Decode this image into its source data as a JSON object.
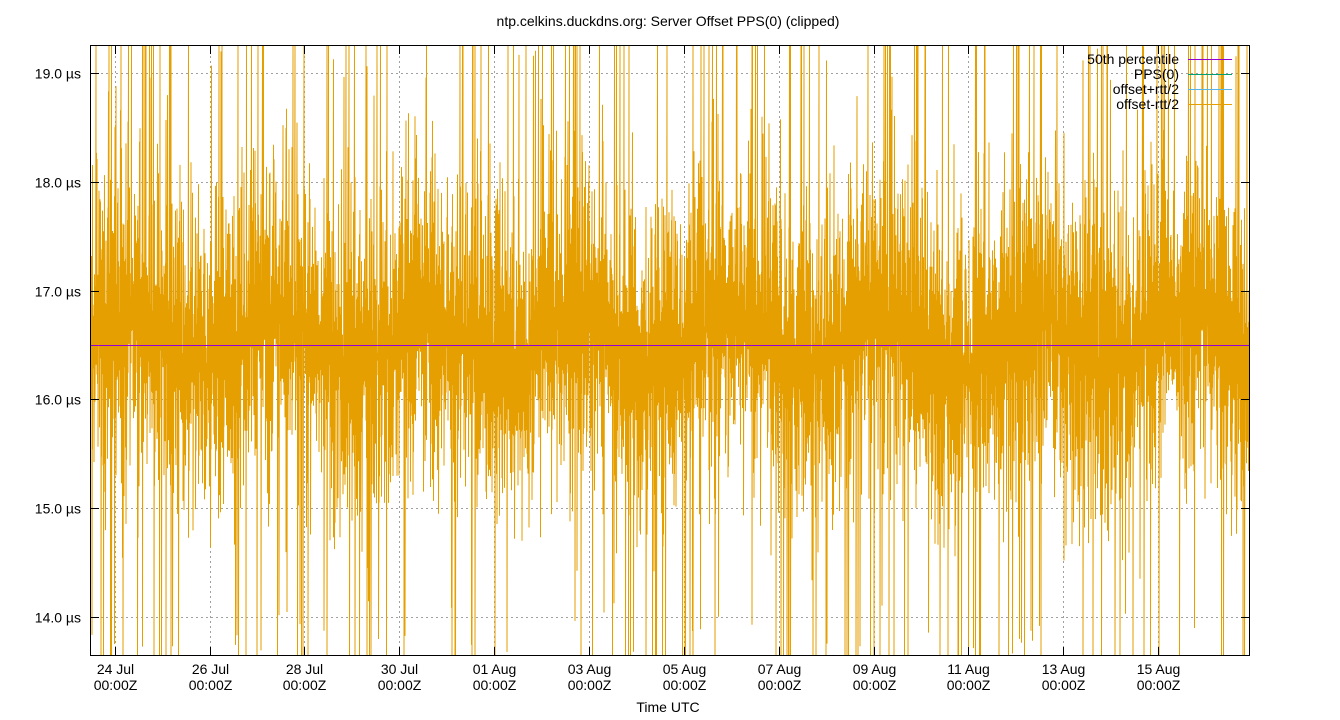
{
  "chart_data": {
    "type": "line",
    "title": "ntp.celkins.duckdns.org: Server Offset PPS(0) (clipped)",
    "xlabel": "Time UTC",
    "ylabel": "",
    "x_range": [
      "2025-07-23T12:00Z",
      "2025-08-16T22:00Z"
    ],
    "y_range_us": [
      13.65,
      19.25
    ],
    "grid": true,
    "legend_placement": "top-right",
    "y_ticks": [
      {
        "value": 14.0,
        "label": "14.0 µs"
      },
      {
        "value": 15.0,
        "label": "15.0 µs"
      },
      {
        "value": 16.0,
        "label": "16.0 µs"
      },
      {
        "value": 17.0,
        "label": "17.0 µs"
      },
      {
        "value": 18.0,
        "label": "18.0 µs"
      },
      {
        "value": 19.0,
        "label": "19.0 µs"
      }
    ],
    "x_ticks": [
      {
        "value": "2025-07-24T00:00Z",
        "line1": "24 Jul",
        "line2": "00:00Z"
      },
      {
        "value": "2025-07-26T00:00Z",
        "line1": "26 Jul",
        "line2": "00:00Z"
      },
      {
        "value": "2025-07-28T00:00Z",
        "line1": "28 Jul",
        "line2": "00:00Z"
      },
      {
        "value": "2025-07-30T00:00Z",
        "line1": "30 Jul",
        "line2": "00:00Z"
      },
      {
        "value": "2025-08-01T00:00Z",
        "line1": "01 Aug",
        "line2": "00:00Z"
      },
      {
        "value": "2025-08-03T00:00Z",
        "line1": "03 Aug",
        "line2": "00:00Z"
      },
      {
        "value": "2025-08-05T00:00Z",
        "line1": "05 Aug",
        "line2": "00:00Z"
      },
      {
        "value": "2025-08-07T00:00Z",
        "line1": "07 Aug",
        "line2": "00:00Z"
      },
      {
        "value": "2025-08-09T00:00Z",
        "line1": "09 Aug",
        "line2": "00:00Z"
      },
      {
        "value": "2025-08-11T00:00Z",
        "line1": "11 Aug",
        "line2": "00:00Z"
      },
      {
        "value": "2025-08-13T00:00Z",
        "line1": "13 Aug",
        "line2": "00:00Z"
      },
      {
        "value": "2025-08-15T00:00Z",
        "line1": "15 Aug",
        "line2": "00:00Z"
      }
    ],
    "series": [
      {
        "name": "50th percentile",
        "color": "#9400d3",
        "value_us": 16.5
      },
      {
        "name": "PPS(0)",
        "color": "#009e73"
      },
      {
        "name": "offset+rtt/2",
        "color": "#56b4e9"
      },
      {
        "name": "offset-rtt/2",
        "color": "#e69f00",
        "visual_center_us": 16.55,
        "typical_range_us": [
          14.8,
          18.3
        ]
      }
    ]
  }
}
